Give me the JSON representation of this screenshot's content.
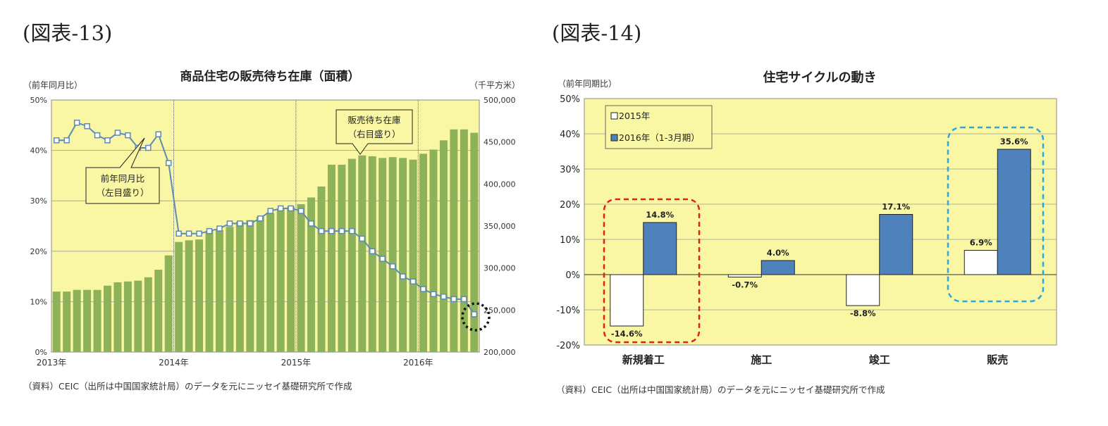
{
  "figures": {
    "left_label": "(図表-13)",
    "right_label": "(図表-14)"
  },
  "sources": {
    "left": "（資料）CEIC（出所は中国国家統計局）のデータを元にニッセイ基礎研究所で作成",
    "right": "（資料）CEIC（出所は中国国家統計局）のデータを元にニッセイ基礎研究所で作成"
  },
  "chart_data": [
    {
      "type": "bar+line",
      "title": "商品住宅の販売待ち在庫（面積）",
      "ylabel_left": "（前年同月比）",
      "ylabel_right": "（千平方米）",
      "y_left_ticks": [
        "0%",
        "10%",
        "20%",
        "30%",
        "40%",
        "50%"
      ],
      "y_right_ticks": [
        "200,000",
        "250,000",
        "300,000",
        "350,000",
        "400,000",
        "450,000",
        "500,000"
      ],
      "ylim_left": [
        0,
        50
      ],
      "ylim_right": [
        200000,
        500000
      ],
      "x_ticks": [
        "2013年",
        "2014年",
        "2015年",
        "2016年"
      ],
      "period": [
        "2013-01",
        "2016-03"
      ],
      "background": "#FAF7A4",
      "grid": true,
      "series": [
        {
          "name": "販売待ち在庫（右目盛り）",
          "type": "bar",
          "axis": "right",
          "color": "#8DB25A",
          "values": [
            272000,
            272000,
            274000,
            274000,
            274000,
            279000,
            283000,
            284000,
            285000,
            289000,
            298000,
            315000,
            331000,
            333000,
            334000,
            344000,
            345000,
            349000,
            355000,
            357000,
            361000,
            365000,
            370000,
            373000,
            376000,
            384000,
            397000,
            423000,
            423000,
            430000,
            434000,
            433000,
            431000,
            432000,
            431000,
            429000,
            436000,
            441000,
            452000,
            465000,
            465000,
            461000
          ]
        },
        {
          "name": "前年同月比（左目盛り）",
          "type": "line",
          "axis": "left",
          "color": "#5D8AB7",
          "values": [
            42.0,
            42.0,
            45.5,
            44.8,
            43.0,
            42.0,
            43.5,
            43.0,
            40.5,
            40.5,
            43.2,
            37.5,
            23.5,
            23.5,
            23.5,
            24.0,
            24.5,
            25.5,
            25.5,
            25.5,
            26.5,
            28.0,
            28.5,
            28.5,
            28.0,
            25.5,
            24.0,
            24.0,
            24.0,
            24.0,
            22.5,
            20.0,
            18.5,
            17.0,
            15.0,
            14.0,
            12.5,
            11.5,
            11.0,
            10.5,
            10.5,
            7.5
          ]
        }
      ],
      "annotations": [
        {
          "text": [
            "前年同月比",
            "（左目盛り）"
          ]
        },
        {
          "text": [
            "販売待ち在庫",
            "（右目盛り）"
          ]
        }
      ]
    },
    {
      "type": "bar",
      "title": "住宅サイクルの動き",
      "ylabel": "（前年同期比）",
      "ylim": [
        -20,
        50
      ],
      "y_ticks": [
        "-20%",
        "-10%",
        "0%",
        "10%",
        "20%",
        "30%",
        "40%",
        "50%"
      ],
      "categories": [
        "新規着工",
        "施工",
        "竣工",
        "販売"
      ],
      "background": "#FAF7A4",
      "grid": true,
      "legend": "top-left",
      "series": [
        {
          "name": "2015年",
          "color": "#FFFFFF",
          "values": [
            -14.6,
            -0.7,
            -8.8,
            6.9
          ],
          "labels": [
            "-14.6%",
            "-0.7%",
            "-8.8%",
            "6.9%"
          ]
        },
        {
          "name": "2016年（1-3月期）",
          "color": "#4F81BD",
          "values": [
            14.8,
            4.0,
            17.1,
            35.6
          ],
          "labels": [
            "14.8%",
            "4.0%",
            "17.1%",
            "35.6%"
          ]
        }
      ],
      "highlight_colors": [
        "#E02020",
        "#2AA8DE"
      ]
    }
  ]
}
